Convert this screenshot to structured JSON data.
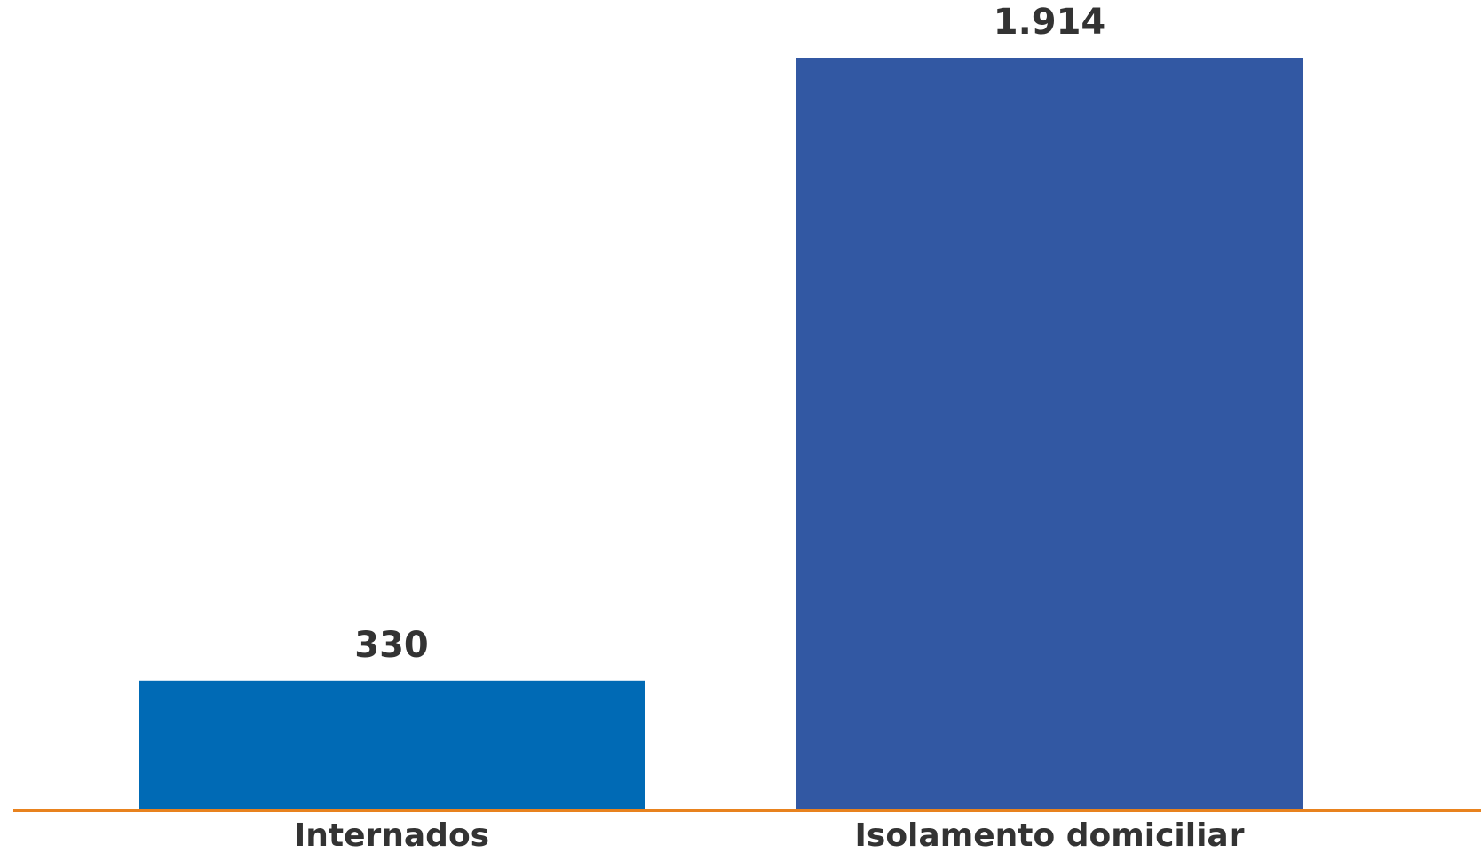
{
  "chart_data": {
    "type": "bar",
    "categories": [
      "Internados",
      "Isolamento domiciliar"
    ],
    "values": [
      330,
      1914
    ],
    "value_labels": [
      "330",
      "1.914"
    ],
    "colors": [
      "#006ab5",
      "#3258a3"
    ],
    "baseline_color": "#e8821e"
  }
}
